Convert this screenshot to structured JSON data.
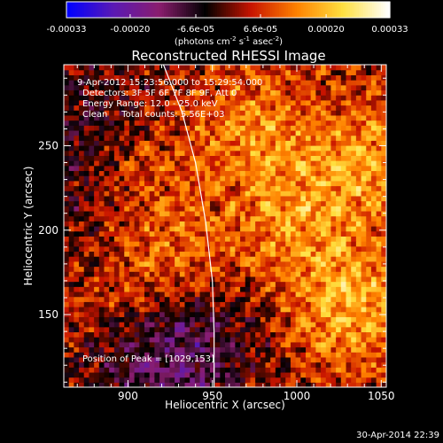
{
  "chart_data": {
    "type": "heatmap",
    "title": "Reconstructed RHESSI Image",
    "xlabel": "Heliocentric X (arcsec)",
    "ylabel": "Heliocentric Y (arcsec)",
    "xlim": [
      862,
      1053
    ],
    "ylim": [
      107,
      298
    ],
    "xticks": [
      900,
      950,
      1000,
      1050
    ],
    "yticks": [
      150,
      200,
      250
    ],
    "colorbar": {
      "range": [
        -0.00033,
        0.00033
      ],
      "tick_values": [
        -0.00033,
        -0.0002,
        -6.6e-05,
        6.6e-05,
        0.0002,
        0.00033
      ],
      "tick_labels": [
        "-0.00033",
        "-0.00020",
        "-6.6e-05",
        "6.6e-05",
        "0.00020",
        "0.00033"
      ],
      "units_prefix": "(photons cm",
      "units_exp1": "-2",
      "units_mid": " s",
      "units_exp2": "-1",
      "units_suffix": " asec",
      "units_exp3": "-2",
      "units_close": ")",
      "colors": [
        "#0000ff",
        "#5a19b4",
        "#8a1d6e",
        "#000000",
        "#c81400",
        "#ff8200",
        "#ffe040",
        "#ffffff"
      ]
    },
    "annotations": [
      "9-Apr-2012 15:23:56.000 to 15:29:54.000",
      "Detectors: 3F 5F 6F 7F 8F 9F, Att 0",
      "Energy Range: 12.0 - 25.0 keV",
      "Clean     Total counts: 5.56E+03"
    ],
    "peak_label": "Position of Peak = [1029,153]",
    "peak_position": [
      1029,
      153
    ],
    "limb_arc": [
      [
        921,
        298
      ],
      [
        932,
        270
      ],
      [
        940,
        240
      ],
      [
        946,
        205
      ],
      [
        950,
        170
      ],
      [
        951,
        140
      ],
      [
        951,
        107
      ]
    ],
    "bright_regions": [
      {
        "x": 1030,
        "y": 155,
        "intensity": 1.0
      },
      {
        "x": 1040,
        "y": 240,
        "intensity": 0.75
      },
      {
        "x": 895,
        "y": 170,
        "intensity": 0.55
      },
      {
        "x": 940,
        "y": 180,
        "intensity": 0.6
      },
      {
        "x": 975,
        "y": 260,
        "intensity": 0.7
      },
      {
        "x": 1000,
        "y": 205,
        "intensity": 0.65
      },
      {
        "x": 905,
        "y": 235,
        "intensity": 0.5
      }
    ],
    "dim_regions": [
      {
        "x": 920,
        "y": 120,
        "intensity": -1.0
      },
      {
        "x": 880,
        "y": 260,
        "intensity": -0.6
      },
      {
        "x": 950,
        "y": 150,
        "intensity": -0.5
      },
      {
        "x": 870,
        "y": 200,
        "intensity": -0.45
      }
    ]
  },
  "footer": {
    "timestamp": "30-Apr-2014 22:39"
  }
}
